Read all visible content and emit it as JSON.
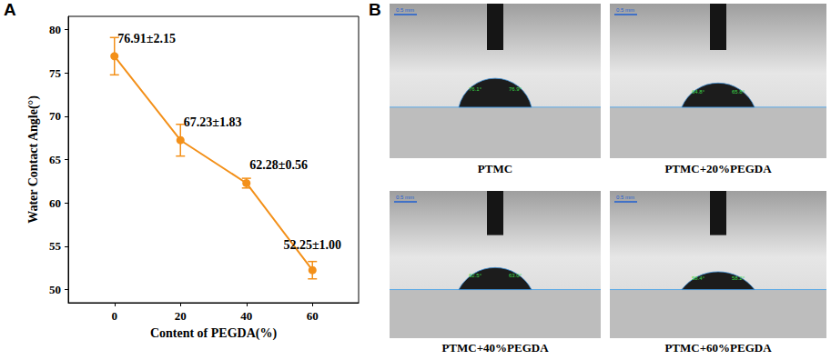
{
  "chart_data": {
    "type": "line",
    "panel_label": "A",
    "x_label": "Content of PEGDA(%)",
    "y_label": "Water Contact Angle(°)",
    "x": [
      0,
      20,
      40,
      60
    ],
    "values": [
      76.91,
      67.23,
      62.28,
      52.25
    ],
    "errors": [
      2.15,
      1.83,
      0.56,
      1.0
    ],
    "value_labels": [
      "76.91±2.15",
      "67.23±1.83",
      "62.28±0.56",
      "52.25±1.00"
    ],
    "color": "#f39019",
    "marker": "circle",
    "line_style": "solid",
    "xlim": [
      -14,
      74
    ],
    "xticks": [
      0,
      20,
      40,
      60
    ],
    "ylim": [
      48.5,
      81.5
    ],
    "yticks": [
      50,
      55,
      60,
      65,
      70,
      75,
      80
    ],
    "grid": false,
    "data_labels": true
  },
  "panel_b": {
    "panel_label": "B",
    "scale_bar": "0.5 mm",
    "images": [
      {
        "caption": "PTMC",
        "angles": [
          "76.1°",
          "76.9°"
        ]
      },
      {
        "caption": "PTMC+20%PEGDA",
        "angles": [
          "64.8°",
          "65.8°"
        ]
      },
      {
        "caption": "PTMC+40%PEGDA",
        "angles": [
          "62.5°",
          "63.0°"
        ]
      },
      {
        "caption": "PTMC+60%PEGDA",
        "angles": [
          "58.4°",
          "58.2°"
        ]
      }
    ]
  }
}
